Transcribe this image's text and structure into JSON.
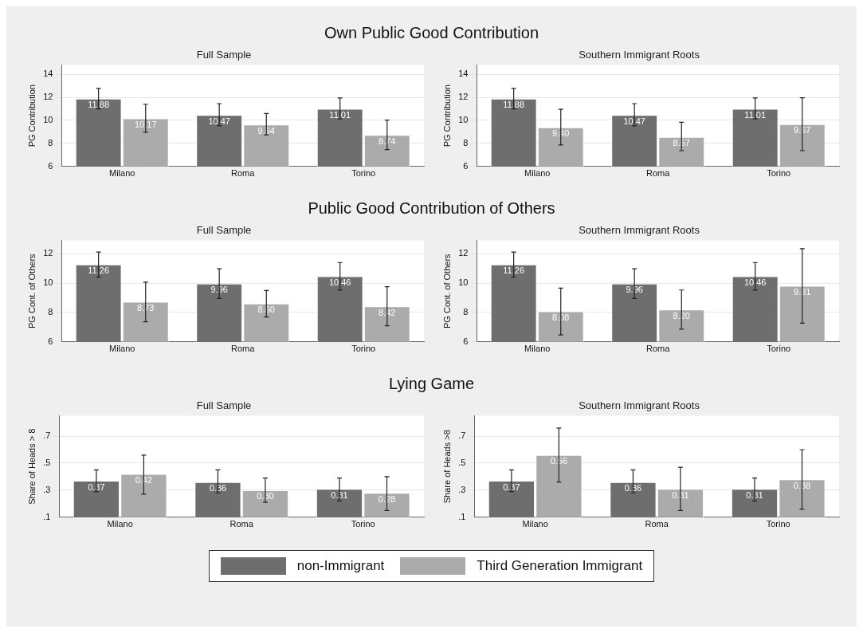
{
  "chart_data": [
    {
      "type": "bar",
      "title": "Own Public Good Contribution",
      "subtitle": "Full Sample",
      "ylabel": "PG Contribution",
      "categories": [
        "Milano",
        "Roma",
        "Torino"
      ],
      "ylim": [
        6,
        14.8
      ],
      "yticks": [
        6,
        8,
        10,
        12,
        14
      ],
      "grid": "y",
      "legend": "bottom",
      "series": [
        {
          "name": "non-Immigrant",
          "color": "#6e6e6e",
          "values": [
            11.88,
            10.47,
            11.01
          ],
          "value_labels": [
            "11.88",
            "10.47",
            "11.01"
          ],
          "errors": [
            [
              11.0,
              12.77
            ],
            [
              9.53,
              11.45
            ],
            [
              10.12,
              11.94
            ]
          ]
        },
        {
          "name": "Third Generation Immigrant",
          "color": "#ababab",
          "values": [
            10.17,
            9.64,
            8.74
          ],
          "value_labels": [
            "10.17",
            "9.64",
            "8.74"
          ],
          "errors": [
            [
              8.97,
              11.4
            ],
            [
              8.75,
              10.59
            ],
            [
              7.47,
              10.02
            ]
          ]
        }
      ]
    },
    {
      "type": "bar",
      "subtitle": "Southern Immigrant Roots",
      "ylabel": "PG Contribution",
      "categories": [
        "Milano",
        "Roma",
        "Torino"
      ],
      "ylim": [
        6,
        14.8
      ],
      "yticks": [
        6,
        8,
        10,
        12,
        14
      ],
      "grid": "y",
      "series": [
        {
          "color": "#6e6e6e",
          "values": [
            11.88,
            10.47,
            11.01
          ],
          "value_labels": [
            "11.88",
            "10.47",
            "11.01"
          ],
          "errors": [
            [
              11.0,
              12.77
            ],
            [
              9.53,
              11.45
            ],
            [
              10.12,
              11.94
            ]
          ]
        },
        {
          "color": "#ababab",
          "values": [
            9.4,
            8.57,
            9.67
          ],
          "value_labels": [
            "9.40",
            "8.57",
            "9.67"
          ],
          "errors": [
            [
              7.86,
              10.96
            ],
            [
              7.37,
              9.83
            ],
            [
              7.37,
              11.96
            ]
          ]
        }
      ]
    },
    {
      "type": "bar",
      "title": "Public Good Contribution of Others",
      "subtitle": "Full Sample",
      "ylabel": "PG Cont. of Others",
      "categories": [
        "Milano",
        "Roma",
        "Torino"
      ],
      "ylim": [
        6,
        12.9
      ],
      "yticks": [
        6,
        8,
        10,
        12
      ],
      "grid": "y",
      "series": [
        {
          "color": "#6e6e6e",
          "values": [
            11.26,
            9.96,
            10.46
          ],
          "value_labels": [
            "11.26",
            "9.96",
            "10.46"
          ],
          "errors": [
            [
              10.4,
              12.11
            ],
            [
              8.95,
              10.97
            ],
            [
              9.52,
              11.4
            ]
          ]
        },
        {
          "color": "#ababab",
          "values": [
            8.73,
            8.6,
            8.42
          ],
          "value_labels": [
            "8.73",
            "8.60",
            "8.42"
          ],
          "errors": [
            [
              7.37,
              10.06
            ],
            [
              7.69,
              9.5
            ],
            [
              7.09,
              9.75
            ]
          ]
        }
      ]
    },
    {
      "type": "bar",
      "subtitle": "Southern Immigrant Roots",
      "ylabel": "PG Cont. of Others",
      "categories": [
        "Milano",
        "Roma",
        "Torino"
      ],
      "ylim": [
        6,
        12.9
      ],
      "yticks": [
        6,
        8,
        10,
        12
      ],
      "grid": "y",
      "series": [
        {
          "color": "#6e6e6e",
          "values": [
            11.26,
            9.96,
            10.46
          ],
          "value_labels": [
            "11.26",
            "9.96",
            "10.46"
          ],
          "errors": [
            [
              10.4,
              12.11
            ],
            [
              8.95,
              10.97
            ],
            [
              9.52,
              11.4
            ]
          ]
        },
        {
          "color": "#ababab",
          "values": [
            8.08,
            8.2,
            9.81
          ],
          "value_labels": [
            "8.08",
            "8.20",
            "9.81"
          ],
          "errors": [
            [
              6.47,
              9.66
            ],
            [
              6.86,
              9.53
            ],
            [
              7.27,
              12.34
            ]
          ]
        }
      ]
    },
    {
      "type": "bar",
      "title": "Lying Game",
      "subtitle": "Full Sample",
      "ylabel": "Share of Heads > 8",
      "categories": [
        "Milano",
        "Roma",
        "Torino"
      ],
      "ylim": [
        0.1,
        0.85
      ],
      "yticks": [
        {
          "value": 0.1,
          "label": ".1"
        },
        {
          "value": 0.3,
          "label": ".3"
        },
        {
          "value": 0.5,
          "label": ".5"
        },
        {
          "value": 0.7,
          "label": ".7"
        }
      ],
      "grid": "y",
      "series": [
        {
          "color": "#6e6e6e",
          "values": [
            0.37,
            0.36,
            0.31
          ],
          "value_labels": [
            "0.37",
            "0.36",
            "0.31"
          ],
          "errors": [
            [
              0.29,
              0.45
            ],
            [
              0.28,
              0.45
            ],
            [
              0.22,
              0.39
            ]
          ]
        },
        {
          "color": "#ababab",
          "values": [
            0.42,
            0.3,
            0.28
          ],
          "value_labels": [
            "0.42",
            "0.30",
            "0.28"
          ],
          "errors": [
            [
              0.27,
              0.56
            ],
            [
              0.21,
              0.39
            ],
            [
              0.15,
              0.4
            ]
          ]
        }
      ]
    },
    {
      "type": "bar",
      "subtitle": "Southern Immigrant Roots",
      "ylabel": "Share of Heads >8",
      "categories": [
        "Milano",
        "Roma",
        "Torino"
      ],
      "ylim": [
        0.1,
        0.85
      ],
      "yticks": [
        {
          "value": 0.1,
          "label": ".1"
        },
        {
          "value": 0.3,
          "label": ".3"
        },
        {
          "value": 0.5,
          "label": ".5"
        },
        {
          "value": 0.7,
          "label": ".7"
        }
      ],
      "grid": "y",
      "series": [
        {
          "color": "#6e6e6e",
          "values": [
            0.37,
            0.36,
            0.31
          ],
          "value_labels": [
            "0.37",
            "0.36",
            "0.31"
          ],
          "errors": [
            [
              0.29,
              0.45
            ],
            [
              0.28,
              0.45
            ],
            [
              0.22,
              0.39
            ]
          ]
        },
        {
          "color": "#ababab",
          "values": [
            0.56,
            0.31,
            0.38
          ],
          "value_labels": [
            "0.56",
            "0.31",
            "0.38"
          ],
          "errors": [
            [
              0.36,
              0.76
            ],
            [
              0.15,
              0.47
            ],
            [
              0.16,
              0.6
            ]
          ]
        }
      ]
    }
  ]
}
